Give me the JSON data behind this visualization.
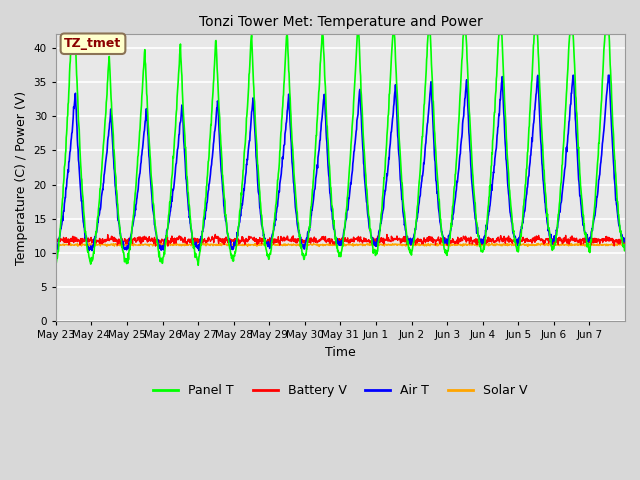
{
  "title": "Tonzi Tower Met: Temperature and Power",
  "xlabel": "Time",
  "ylabel": "Temperature (C) / Power (V)",
  "ylim": [
    0,
    42
  ],
  "yticks": [
    0,
    5,
    10,
    15,
    20,
    25,
    30,
    35,
    40
  ],
  "annotation_text": "TZ_tmet",
  "annotation_color": "#8B0000",
  "annotation_bg": "#FFFFCC",
  "fig_color": "#D8D8D8",
  "plot_bg": "#E8E8E8",
  "grid_color": "white",
  "colors": {
    "Panel T": "#00FF00",
    "Battery V": "#FF0000",
    "Air T": "#0000FF",
    "Solar V": "#FFA500"
  },
  "x_tick_labels": [
    "May 23",
    "May 24",
    "May 25",
    "May 26",
    "May 27",
    "May 28",
    "May 29",
    "May 30",
    "May 31",
    "Jun 1",
    "Jun 2",
    "Jun 3",
    "Jun 4",
    "Jun 5",
    "Jun 6",
    "Jun 7"
  ],
  "n_days": 16,
  "pts_per_day": 96
}
